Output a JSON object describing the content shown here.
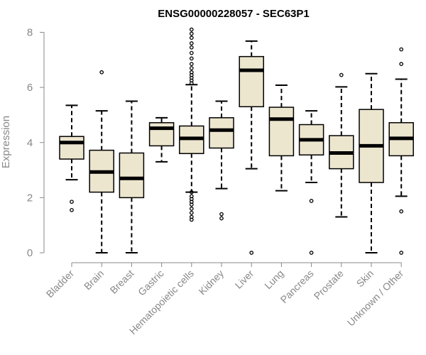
{
  "chart_data": {
    "type": "boxplot",
    "title": "ENSG00000228057 - SEC63P1",
    "xlabel": "",
    "ylabel": "Expression",
    "ylim": [
      0,
      8
    ],
    "yticks": [
      0,
      2,
      4,
      6,
      8
    ],
    "box_fill": "#ede6cf",
    "stroke_color": "#000000",
    "axis_color": "#888888",
    "categories": [
      "Bladder",
      "Brain",
      "Breast",
      "Gastric",
      "Hematopoietic cells",
      "Kidney",
      "Liver",
      "Lung",
      "Pancreas",
      "Prostate",
      "Skin",
      "Unknown / Other"
    ],
    "boxes": [
      {
        "name": "Bladder",
        "whislo": 2.65,
        "q1": 3.4,
        "med": 4.0,
        "q3": 4.22,
        "whishi": 5.35,
        "fliers": [
          1.85,
          1.55
        ]
      },
      {
        "name": "Brain",
        "whislo": 0.0,
        "q1": 2.2,
        "med": 2.93,
        "q3": 3.72,
        "whishi": 5.15,
        "fliers": [
          6.55
        ]
      },
      {
        "name": "Breast",
        "whislo": 0.0,
        "q1": 2.0,
        "med": 2.7,
        "q3": 3.62,
        "whishi": 5.5,
        "fliers": []
      },
      {
        "name": "Gastric",
        "whislo": 3.3,
        "q1": 3.88,
        "med": 4.52,
        "q3": 4.72,
        "whishi": 4.9,
        "fliers": []
      },
      {
        "name": "Hematopoietic cells",
        "whislo": 2.2,
        "q1": 3.6,
        "med": 4.15,
        "q3": 4.6,
        "whishi": 6.1,
        "fliers": [
          8.1,
          7.95,
          7.8,
          7.6,
          7.45,
          7.25,
          7.05,
          6.85,
          6.7,
          6.55,
          6.45,
          6.35,
          6.25,
          6.15,
          2.2,
          2.05,
          1.95,
          1.85,
          1.75,
          1.6,
          1.45,
          1.3,
          1.2
        ]
      },
      {
        "name": "Kidney",
        "whislo": 2.33,
        "q1": 3.8,
        "med": 4.45,
        "q3": 4.9,
        "whishi": 5.5,
        "fliers": [
          1.4,
          1.25
        ]
      },
      {
        "name": "Liver",
        "whislo": 3.05,
        "q1": 5.3,
        "med": 6.62,
        "q3": 7.12,
        "whishi": 7.68,
        "fliers": [
          0.0
        ]
      },
      {
        "name": "Lung",
        "whislo": 2.25,
        "q1": 3.52,
        "med": 4.85,
        "q3": 5.28,
        "whishi": 6.08,
        "fliers": []
      },
      {
        "name": "Pancreas",
        "whislo": 2.55,
        "q1": 3.55,
        "med": 4.1,
        "q3": 4.65,
        "whishi": 5.15,
        "fliers": [
          1.88,
          0.0
        ]
      },
      {
        "name": "Prostate",
        "whislo": 1.3,
        "q1": 3.05,
        "med": 3.62,
        "q3": 4.25,
        "whishi": 6.02,
        "fliers": [
          6.45
        ]
      },
      {
        "name": "Skin",
        "whislo": 0.0,
        "q1": 2.55,
        "med": 3.88,
        "q3": 5.2,
        "whishi": 6.5,
        "fliers": []
      },
      {
        "name": "Unknown / Other",
        "whislo": 2.05,
        "q1": 3.52,
        "med": 4.15,
        "q3": 4.72,
        "whishi": 6.3,
        "fliers": [
          7.38,
          6.85,
          1.5,
          0.0
        ]
      }
    ]
  }
}
